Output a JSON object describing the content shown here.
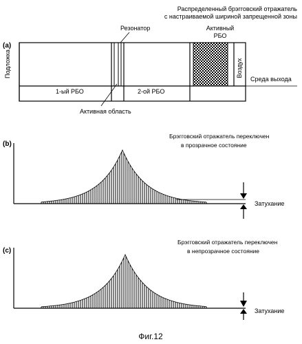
{
  "figure": {
    "caption": "Фиг.12",
    "colors": {
      "ink": "#000000",
      "paper": "#ffffff"
    }
  },
  "panel_a": {
    "tag": "(а)",
    "top_label_line1": "Распределенный брэгговский отражатель",
    "top_label_line2": "с настраиваемой шириной запрещенной зоны",
    "resonator_label": "Резонатор",
    "active_dbr_line1": "Активный",
    "active_dbr_line2": "РБО",
    "substrate_label": "Подложка",
    "air_label": "Воздух",
    "exit_medium_label": "Среда выхода",
    "dbr1_label": "1-ый РБО",
    "dbr2_label": "2-ой РБО",
    "active_region_label": "Активная область"
  },
  "panel_b": {
    "tag": "(b)",
    "note_line1": "Брэгговский отражатель переключен",
    "note_line2": "в прозрачное состояние",
    "attenuation_label": "Затухание",
    "attenuation_level": "small"
  },
  "panel_c": {
    "tag": "(c)",
    "note_line1": "Брэгговский отражатель переключен",
    "note_line2": "в непрозрачное состояние",
    "attenuation_label": "Затухание",
    "attenuation_level": "large"
  }
}
